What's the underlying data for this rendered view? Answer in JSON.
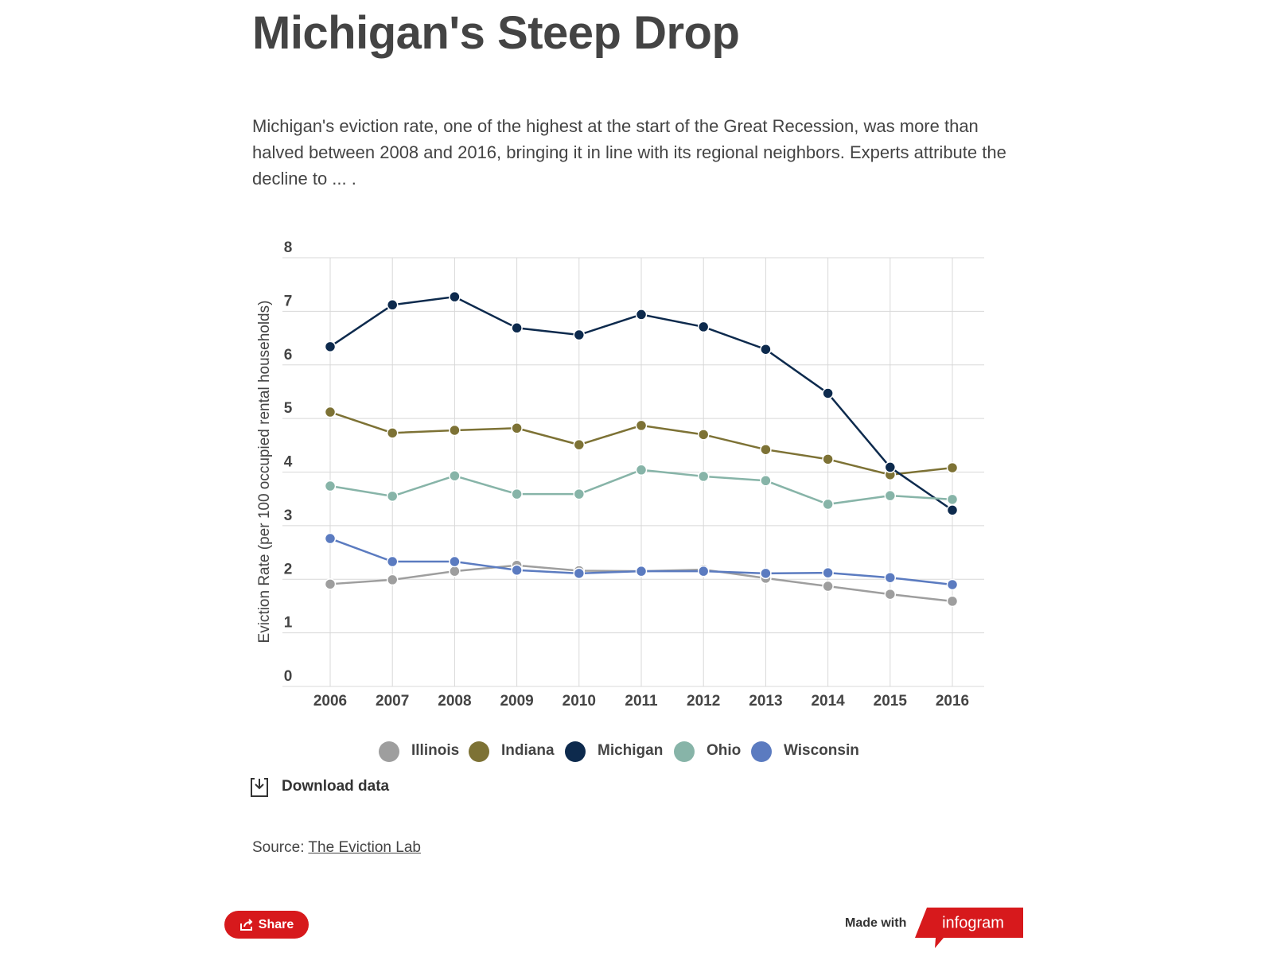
{
  "chart_data": {
    "type": "line",
    "title": "Michigan's Steep Drop",
    "subtitle": "Michigan's eviction rate, one of the highest at the start of the Great Recession, was more than halved between 2008 and 2016, bringing it in line with its regional neighbors. Experts attribute the decline to ... .",
    "y_label": "Eviction Rate (per 100 occupied rental households)",
    "categories": [
      "2006",
      "2007",
      "2008",
      "2009",
      "2010",
      "2011",
      "2012",
      "2013",
      "2014",
      "2015",
      "2016"
    ],
    "series": [
      {
        "name": "Illinois",
        "color": "#9e9e9e",
        "values": [
          1.91,
          1.99,
          2.15,
          2.26,
          2.16,
          2.15,
          2.18,
          2.02,
          1.87,
          1.72,
          1.59
        ]
      },
      {
        "name": "Indiana",
        "color": "#7d7235",
        "values": [
          5.12,
          4.73,
          4.78,
          4.82,
          4.51,
          4.87,
          4.7,
          4.42,
          4.24,
          3.95,
          4.08
        ]
      },
      {
        "name": "Michigan",
        "color": "#0d2a4d",
        "values": [
          6.34,
          7.12,
          7.27,
          6.69,
          6.56,
          6.94,
          6.71,
          6.29,
          5.47,
          4.09,
          3.29
        ]
      },
      {
        "name": "Ohio",
        "color": "#87b4a8",
        "values": [
          3.74,
          3.55,
          3.93,
          3.59,
          3.59,
          4.04,
          3.92,
          3.84,
          3.4,
          3.56,
          3.49
        ]
      },
      {
        "name": "Wisconsin",
        "color": "#5b7bc0",
        "values": [
          2.76,
          2.33,
          2.33,
          2.17,
          2.11,
          2.15,
          2.15,
          2.11,
          2.12,
          2.03,
          1.9
        ]
      }
    ],
    "ylim": [
      0,
      8
    ],
    "yticks": [
      0,
      1,
      2,
      3,
      4,
      5,
      6,
      7,
      8
    ],
    "grid": true
  },
  "footer": {
    "download": "Download data",
    "source_label": "Source:",
    "source_link": "The Eviction Lab",
    "share": "Share",
    "made_with": "Made with",
    "brand": "infogram"
  }
}
